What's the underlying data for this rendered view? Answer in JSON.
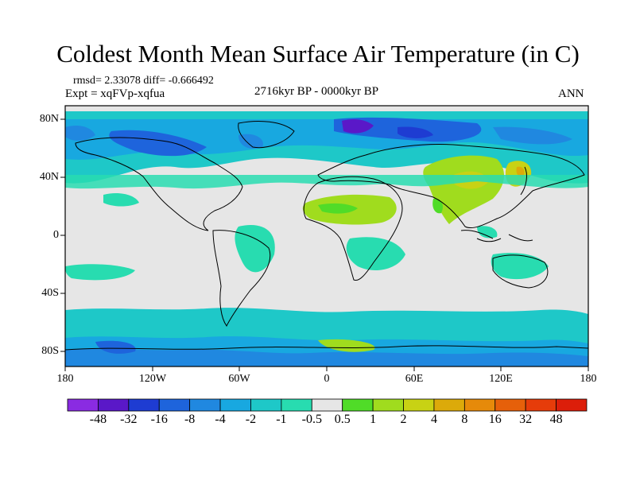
{
  "title": "Coldest Month Mean Surface Air Temperature (in C)",
  "stats": "rmsd= 2.33078 diff= -0.666492",
  "experiment": "Expt = xqFVp-xqfua",
  "period": "2716kyr BP - 0000kyr BP",
  "season": "ANN",
  "y_ticks": [
    "80N",
    "40N",
    "0",
    "40S",
    "80S"
  ],
  "x_ticks": [
    "180",
    "120W",
    "60W",
    "0",
    "60E",
    "120E",
    "180"
  ],
  "colorbar": {
    "labels": [
      "-48",
      "-32",
      "-16",
      "-8",
      "-4",
      "-2",
      "-1",
      "-0.5",
      "0.5",
      "1",
      "2",
      "4",
      "8",
      "16",
      "32",
      "48"
    ],
    "colors": [
      "#8a2be2",
      "#5a18c8",
      "#1e3cd2",
      "#1e64dc",
      "#2088e0",
      "#18a8e0",
      "#1ec8c8",
      "#28dcb0",
      "#e6e6e6",
      "#50dc28",
      "#a0dc1e",
      "#c8d214",
      "#dcaa0a",
      "#e68a0a",
      "#e6600a",
      "#e63c0a",
      "#dc1e0a"
    ]
  }
}
